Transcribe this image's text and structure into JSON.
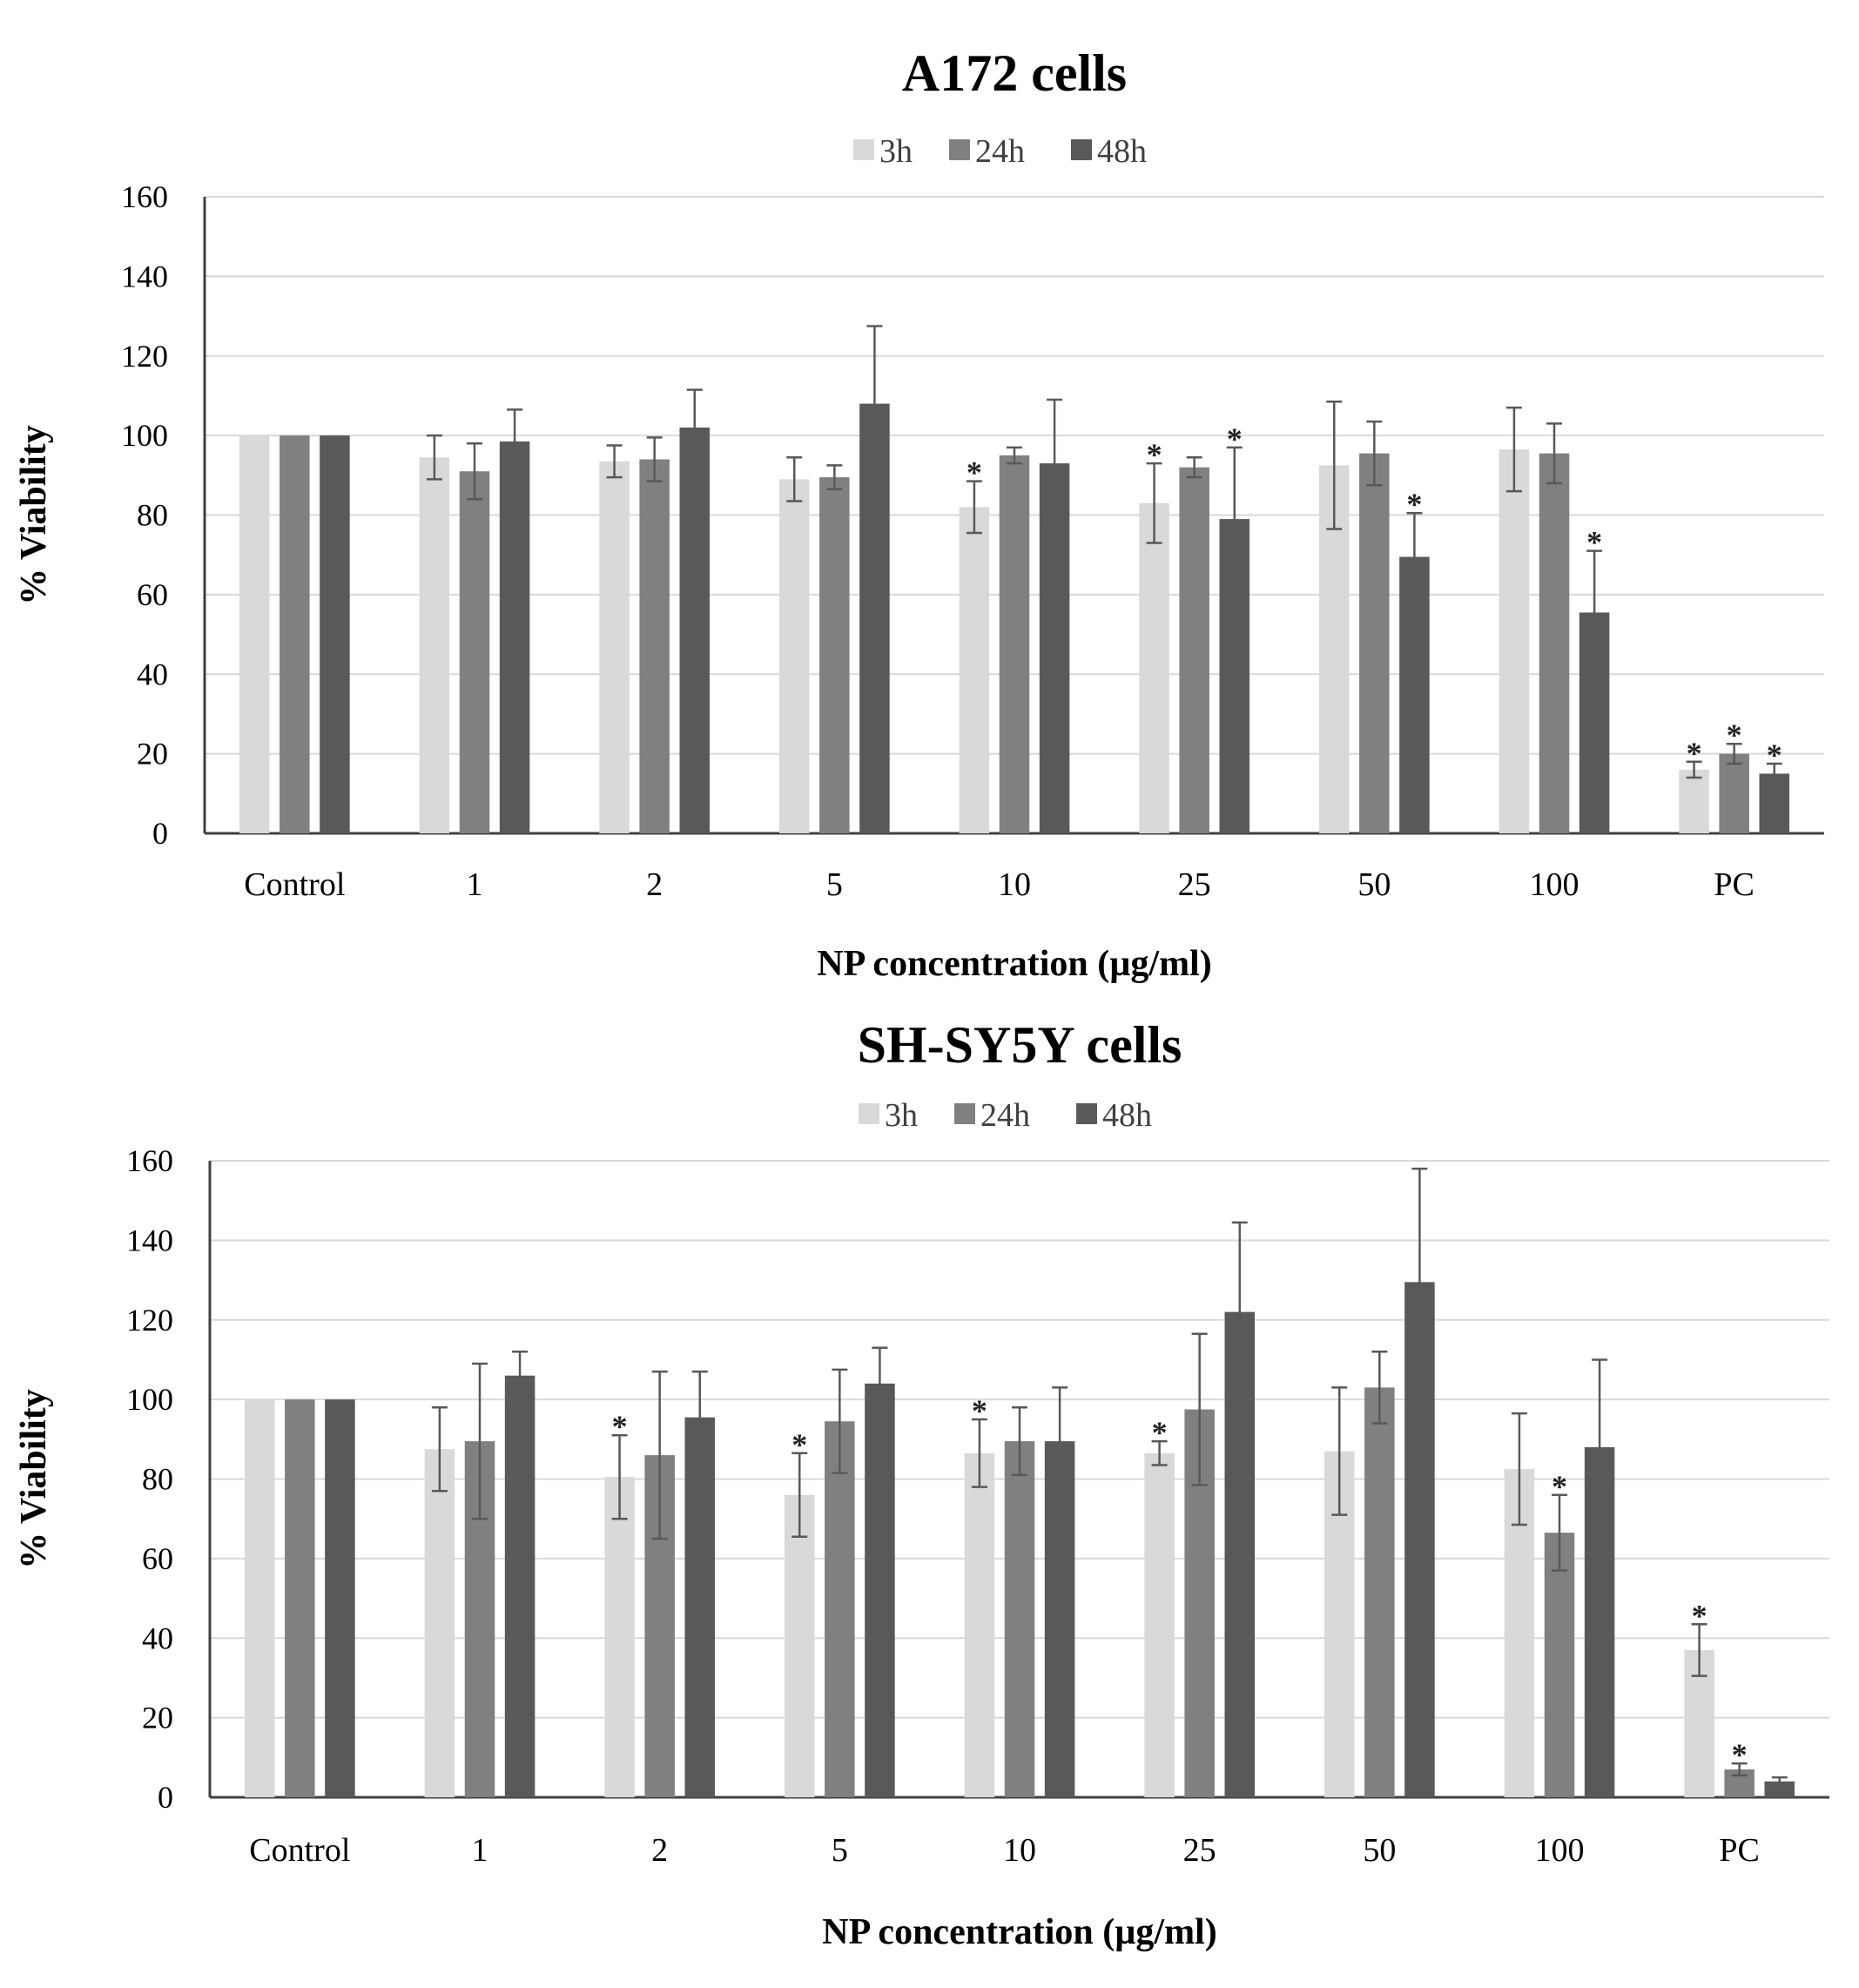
{
  "colors": {
    "3h": "#d9d9d9",
    "24h": "#808080",
    "48h": "#595959",
    "grid": "#d9d9d9",
    "axis": "#404040",
    "text": "#000000"
  },
  "chart_data": [
    {
      "type": "bar",
      "title": "A172 cells",
      "xlabel": "NP concentration (µg/ml)",
      "ylabel": "% Viability",
      "ylim": [
        0,
        160
      ],
      "yticks": [
        0,
        20,
        40,
        60,
        80,
        100,
        120,
        140,
        160
      ],
      "grid": true,
      "legend_position": "top-center",
      "categories": [
        "Control",
        "1",
        "2",
        "5",
        "10",
        "25",
        "50",
        "100",
        "PC"
      ],
      "series": [
        {
          "name": "3h",
          "color": "#d9d9d9",
          "values": [
            100,
            94.5,
            93.5,
            89,
            82,
            83,
            92.5,
            96.5,
            16
          ],
          "errors": [
            0,
            5.5,
            4,
            5.5,
            6.5,
            10,
            16,
            10.5,
            2
          ],
          "significant": [
            false,
            false,
            false,
            false,
            true,
            true,
            false,
            false,
            true
          ]
        },
        {
          "name": "24h",
          "color": "#808080",
          "values": [
            100,
            91,
            94,
            89.5,
            95,
            92,
            95.5,
            95.5,
            20
          ],
          "errors": [
            0,
            7,
            5.5,
            3,
            2,
            2.5,
            8,
            7.5,
            2.5
          ],
          "significant": [
            false,
            false,
            false,
            false,
            false,
            false,
            false,
            false,
            true
          ]
        },
        {
          "name": "48h",
          "color": "#595959",
          "values": [
            100,
            98.5,
            102,
            108,
            93,
            79,
            69.5,
            55.5,
            15
          ],
          "errors": [
            0,
            8,
            9.5,
            19.5,
            16,
            18,
            11,
            15.5,
            2.5
          ],
          "significant": [
            false,
            false,
            false,
            false,
            false,
            true,
            true,
            true,
            true
          ]
        }
      ]
    },
    {
      "type": "bar",
      "title": "SH-SY5Y cells",
      "xlabel": "NP concentration (µg/ml)",
      "ylabel": "% Viability",
      "ylim": [
        0,
        160
      ],
      "yticks": [
        0,
        20,
        40,
        60,
        80,
        100,
        120,
        140,
        160
      ],
      "grid": true,
      "legend_position": "top-center",
      "categories": [
        "Control",
        "1",
        "2",
        "5",
        "10",
        "25",
        "50",
        "100",
        "PC"
      ],
      "series": [
        {
          "name": "3h",
          "color": "#d9d9d9",
          "values": [
            100,
            87.5,
            80.5,
            76,
            86.5,
            86.5,
            87,
            82.5,
            37
          ],
          "errors": [
            0,
            10.5,
            10.5,
            10.5,
            8.5,
            3,
            16,
            14,
            6.5
          ],
          "significant": [
            false,
            false,
            true,
            true,
            true,
            true,
            false,
            false,
            true
          ]
        },
        {
          "name": "24h",
          "color": "#808080",
          "values": [
            100,
            89.5,
            86,
            94.5,
            89.5,
            97.5,
            103,
            66.5,
            7
          ],
          "errors": [
            0,
            19.5,
            21,
            13,
            8.5,
            19,
            9,
            9.5,
            1.5
          ],
          "significant": [
            false,
            false,
            false,
            false,
            false,
            false,
            false,
            true,
            true
          ]
        },
        {
          "name": "48h",
          "color": "#595959",
          "values": [
            100,
            106,
            95.5,
            104,
            89.5,
            122,
            129.5,
            88,
            4
          ],
          "errors": [
            0,
            6,
            11.5,
            9,
            13.5,
            22.5,
            28.5,
            22,
            1
          ],
          "significant": [
            false,
            false,
            false,
            false,
            false,
            false,
            false,
            false,
            false
          ]
        }
      ]
    }
  ]
}
